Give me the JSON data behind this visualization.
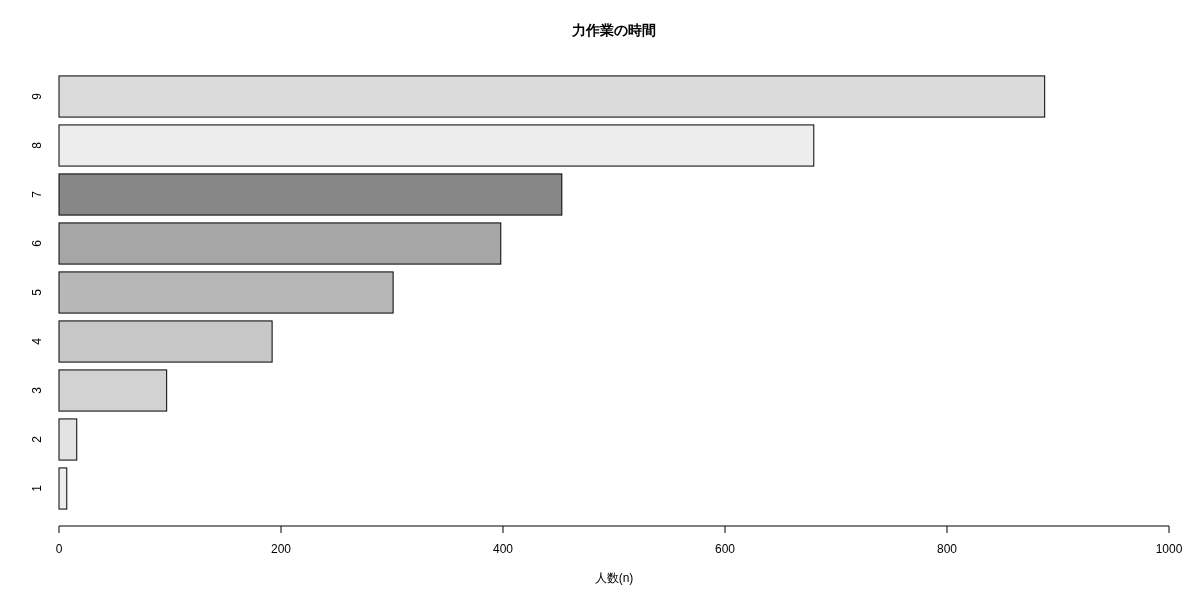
{
  "chart_data": {
    "type": "bar",
    "orientation": "horizontal",
    "title": "力作業の時間",
    "xlabel": "人数(n)",
    "categories": [
      "9",
      "8",
      "7",
      "6",
      "5",
      "4",
      "3",
      "2",
      "1"
    ],
    "values": [
      888,
      680,
      453,
      398,
      301,
      192,
      97,
      16,
      7
    ],
    "colors": [
      "#dbdbdb",
      "#ededed",
      "#878787",
      "#a6a6a6",
      "#b7b7b7",
      "#c7c7c7",
      "#d2d2d2",
      "#e3e3e3",
      "#ededed"
    ],
    "xlim": [
      0,
      1000
    ],
    "xticks": [
      0,
      200,
      400,
      600,
      800,
      1000
    ]
  }
}
